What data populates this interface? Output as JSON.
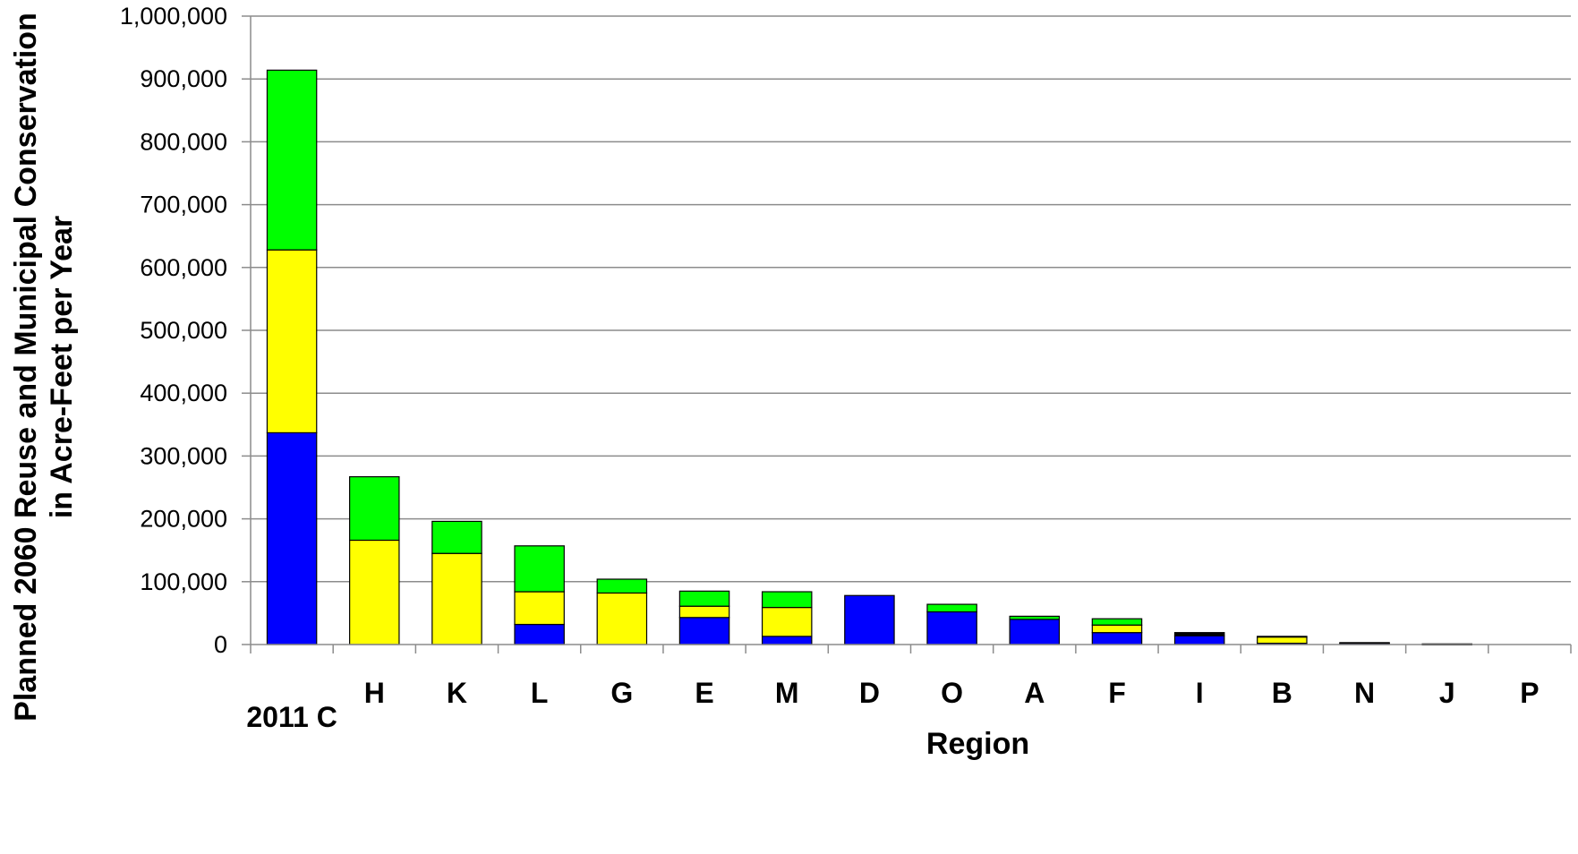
{
  "chart_data": {
    "type": "bar",
    "stacked": true,
    "title": "",
    "xlabel": "Region",
    "ylabel_lines": [
      "Planned 2060 Reuse and Municipal Conservation",
      "in Acre-Feet per Year"
    ],
    "ylim": [
      0,
      1000000
    ],
    "yticks": [
      0,
      100000,
      200000,
      300000,
      400000,
      500000,
      600000,
      700000,
      800000,
      900000,
      1000000
    ],
    "ytick_labels": [
      "0",
      "100,000",
      "200,000",
      "300,000",
      "400,000",
      "500,000",
      "600,000",
      "700,000",
      "800,000",
      "900,000",
      "1,000,000"
    ],
    "grid": true,
    "legend": "none",
    "categories": [
      "2011 C",
      "H",
      "K",
      "L",
      "G",
      "E",
      "M",
      "D",
      "O",
      "A",
      "F",
      "I",
      "B",
      "N",
      "J",
      "P"
    ],
    "series": [
      {
        "color": "#0000ff",
        "values": [
          337000,
          0,
          0,
          32000,
          0,
          43000,
          13000,
          78000,
          52000,
          40000,
          19000,
          14000,
          2000,
          2000,
          500,
          0
        ]
      },
      {
        "color": "#ffff00",
        "values": [
          291000,
          166000,
          145000,
          52000,
          82000,
          18000,
          46000,
          0,
          0,
          0,
          12000,
          0,
          10000,
          0,
          0,
          0
        ]
      },
      {
        "color": "#00ff00",
        "values": [
          286000,
          101000,
          51000,
          73000,
          22000,
          24000,
          25000,
          0,
          12000,
          5000,
          10000,
          0,
          0,
          0,
          0,
          0
        ]
      },
      {
        "color": "#000000",
        "values": [
          0,
          0,
          0,
          0,
          0,
          0,
          0,
          0,
          0,
          0,
          0,
          5000,
          1000,
          1000,
          500,
          0
        ]
      }
    ]
  }
}
